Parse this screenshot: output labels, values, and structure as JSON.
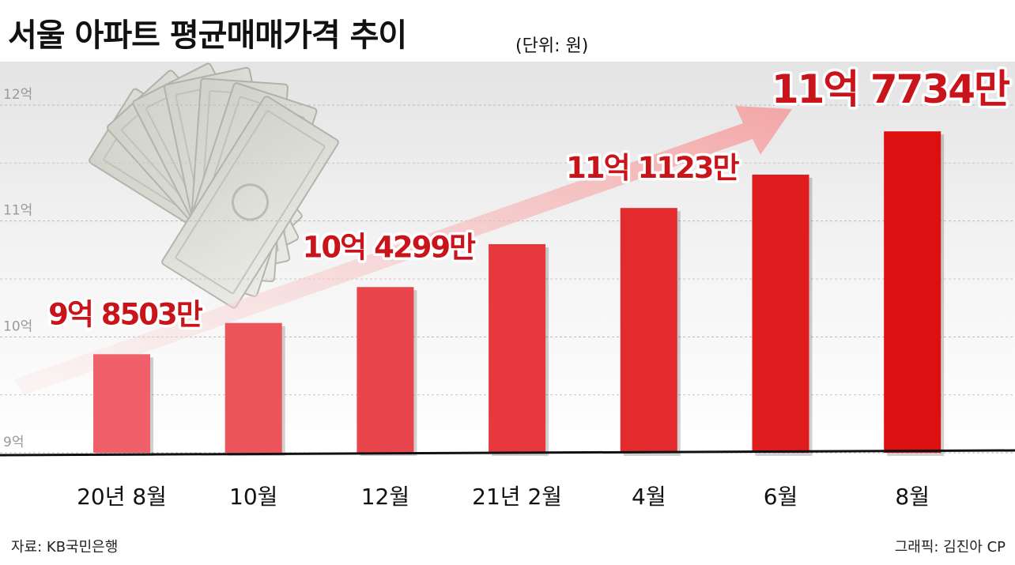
{
  "header": {
    "title": "서울 아파트 평균매매가격 추이",
    "unit": "(단위: 원)"
  },
  "footer": {
    "source": "자료: KB국민은행",
    "credit": "그래픽: 김진아 CP"
  },
  "chart_data": {
    "type": "bar",
    "title": "서울 아파트 평균매매가격 추이",
    "ylabel": "",
    "xlabel": "",
    "ylim": [
      9,
      12
    ],
    "y_ticks": [
      {
        "value": 9,
        "label": "9억"
      },
      {
        "value": 10,
        "label": "10억"
      },
      {
        "value": 11,
        "label": "11억"
      },
      {
        "value": 12,
        "label": "12억"
      }
    ],
    "categories": [
      "20년 8월",
      "10월",
      "12월",
      "21년 2월",
      "4월",
      "6월",
      "8월"
    ],
    "values": [
      9.8503,
      10.12,
      10.4299,
      10.8,
      11.1123,
      11.4,
      11.7734
    ],
    "data_labels": [
      {
        "index": 0,
        "text": "9억 8503만"
      },
      {
        "index": 2,
        "text": "10억 4299만"
      },
      {
        "index": 4,
        "text": "11억 1123만"
      },
      {
        "index": 6,
        "text": "11억 7734만"
      }
    ],
    "bar_colors": {
      "start": "#f0606a",
      "end": "#dc1010"
    },
    "label_color": "#c8141a",
    "grid": true,
    "trend_arrow": true
  }
}
